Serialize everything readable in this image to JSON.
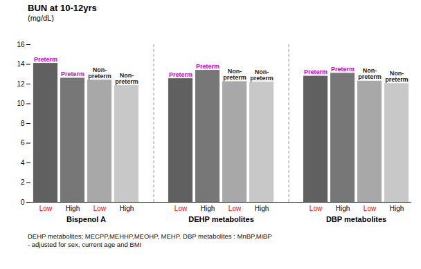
{
  "chart_data": {
    "type": "bar",
    "title": "BUN at 10-12yrs",
    "subtitle": "(mg/dL)",
    "categories": [
      "Bispenol A",
      "DEHP metabolites",
      "DBP metabolites"
    ],
    "series": [
      {
        "name": "Low",
        "name_color": "red",
        "color": "#606060",
        "values": [
          14.1,
          12.55,
          12.8
        ],
        "annotation": "Preterm",
        "annotation_color": "#cc00cc"
      },
      {
        "name": "High",
        "name_color": "black",
        "color": "#777777",
        "values": [
          12.6,
          13.4,
          13.1
        ],
        "annotation": "Preterm",
        "annotation_color": "#cc00cc"
      },
      {
        "name": "Low",
        "name_color": "red",
        "color": "#a8a8a8",
        "values": [
          12.4,
          12.25,
          12.3
        ],
        "annotation": "Non-\npreterm",
        "annotation_color": "#222222"
      },
      {
        "name": "High",
        "name_color": "black",
        "color": "#c8c8c8",
        "values": [
          11.85,
          12.2,
          12.05
        ],
        "annotation": "Non-\npreterm",
        "annotation_color": "#222222"
      }
    ],
    "ylim": [
      0,
      16
    ],
    "yticks": [
      0,
      2,
      4,
      6,
      8,
      10,
      12,
      14,
      16
    ],
    "grid": false,
    "footnotes": [
      "DEHP metabolites; MECPP,MEHHP,MEOHP, MEHP. DBP metabolites : MnBP,MiBP",
      "- adjusted for sex, current age and BMI"
    ]
  }
}
